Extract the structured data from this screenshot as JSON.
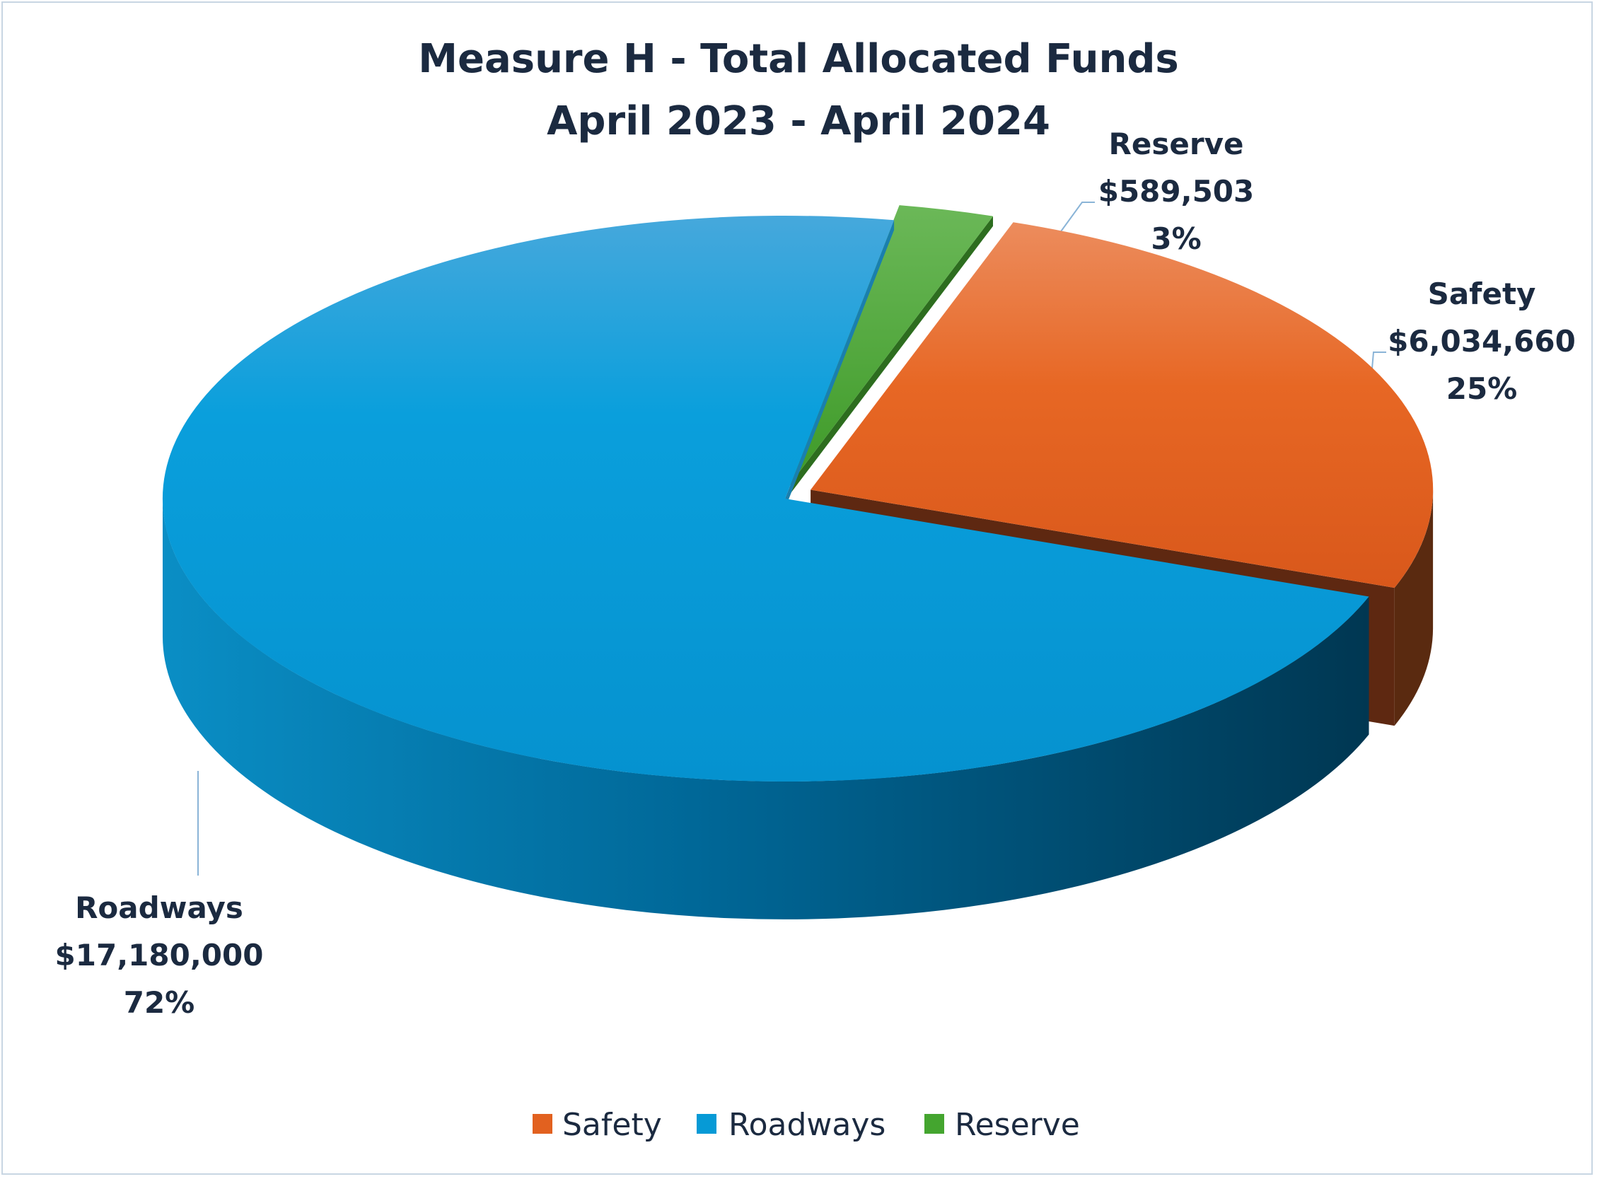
{
  "chart_data": {
    "type": "pie",
    "title": [
      "Measure H - Total Allocated Funds",
      "April 2023 - April 2024"
    ],
    "slices": [
      {
        "name": "Safety",
        "value": 6034660,
        "amount_label": "$6,034,660",
        "percent_label": "25%",
        "percent": 25,
        "color": "#e2611f"
      },
      {
        "name": "Roadways",
        "value": 17180000,
        "amount_label": "$17,180,000",
        "percent_label": "72%",
        "percent": 72,
        "color": "#069ad6"
      },
      {
        "name": "Reserve",
        "value": 589503,
        "amount_label": "$589,503",
        "percent_label": "3%",
        "percent": 3,
        "color": "#44a52f"
      }
    ],
    "legend": [
      "Safety",
      "Roadways",
      "Reserve"
    ],
    "legend_position": "bottom",
    "style": "3D exploded pie"
  }
}
